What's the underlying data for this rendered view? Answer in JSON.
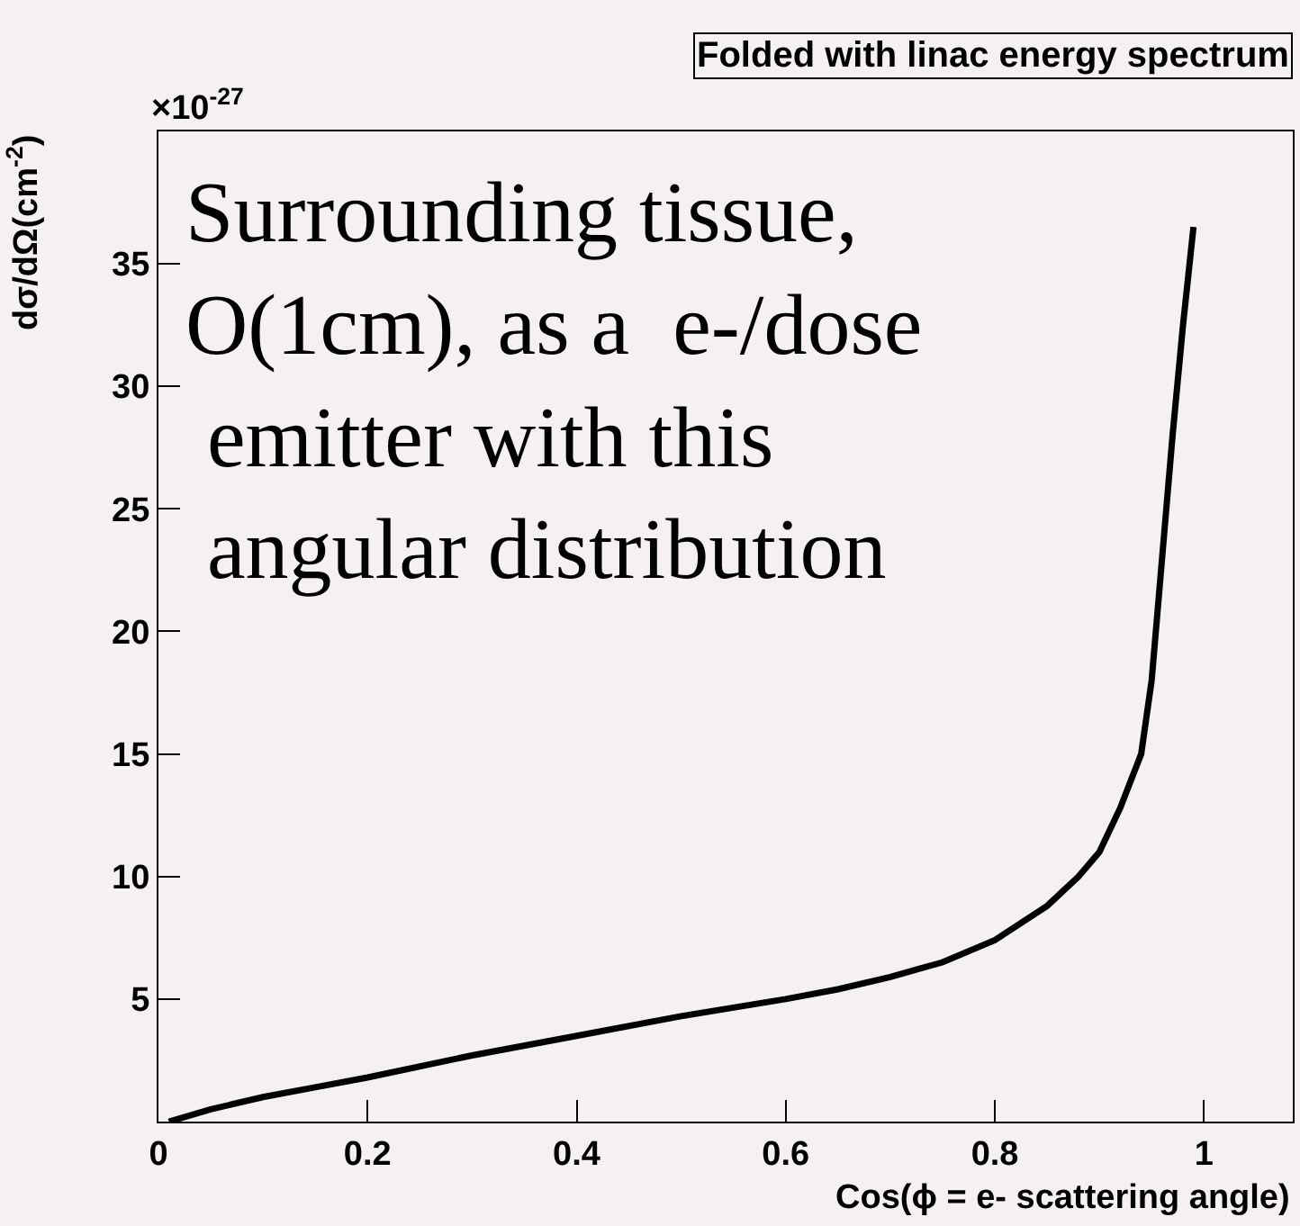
{
  "chart_data": {
    "type": "line",
    "title": "Folded with linac energy spectrum",
    "xlabel": "Cos(ϕ = e- scattering angle)",
    "ylabel": "dσ/dΩ(cm$^{-2}$)",
    "annotations": [
      "×10$^{-27}$",
      "Surrounding tissue,\nO(1cm), as a  e-/dose\n emitter with this\n angular distribution"
    ],
    "x": [
      0.01,
      0.05,
      0.1,
      0.15,
      0.2,
      0.3,
      0.4,
      0.5,
      0.6,
      0.65,
      0.7,
      0.75,
      0.8,
      0.85,
      0.88,
      0.9,
      0.92,
      0.94,
      0.95,
      0.96,
      0.97,
      0.98,
      0.99
    ],
    "series": [
      {
        "color": "#000000",
        "values": [
          0,
          0.5,
          1.0,
          1.4,
          1.8,
          2.7,
          3.5,
          4.3,
          5.0,
          5.4,
          5.9,
          6.5,
          7.4,
          8.8,
          10,
          11,
          12.8,
          15,
          18,
          23,
          28,
          32.5,
          36.5
        ]
      }
    ],
    "xlim": [
      0,
      1.085
    ],
    "ylim": [
      0,
      40.4
    ],
    "xticks": [
      0,
      0.2,
      0.4,
      0.6,
      0.8,
      1
    ],
    "yticks": [
      5,
      10,
      15,
      20,
      25,
      30,
      35
    ],
    "grid": false,
    "marker": "none",
    "line_style": "solid"
  }
}
